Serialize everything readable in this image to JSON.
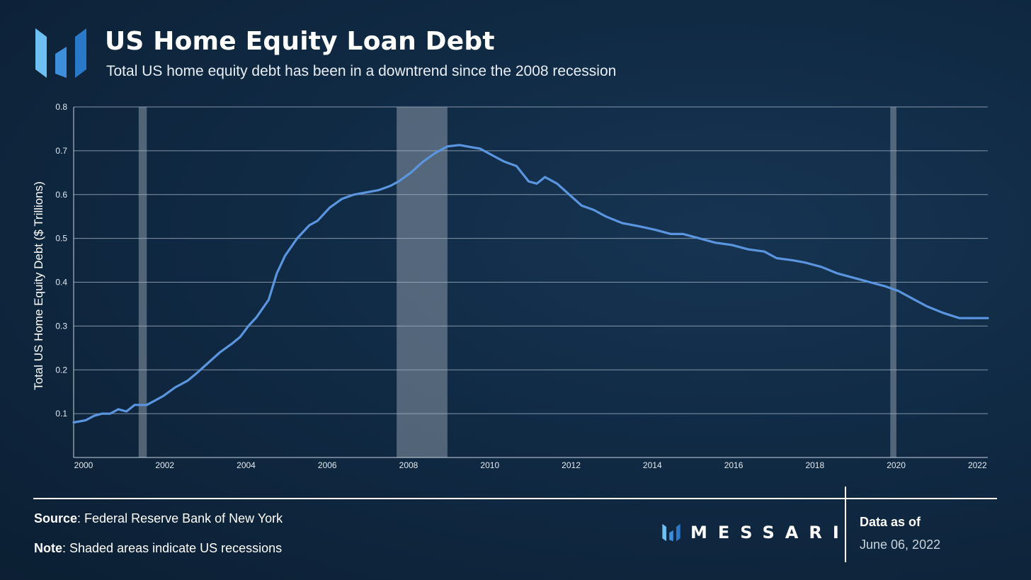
{
  "header": {
    "title": "US Home Equity Loan Debt",
    "subtitle": "Total US home equity debt has been in a downtrend since the 2008 recession"
  },
  "footer": {
    "source_label": "Source",
    "source_text": ": Federal Reserve Bank of New York",
    "note_label": "Note",
    "note_text": ": Shaded areas indicate US recessions",
    "brand_name": "MESSARI",
    "data_as_of_label": "Data as of",
    "data_as_of_date": "June 06, 2022"
  },
  "icons": {
    "logo": "messari-logo-icon"
  },
  "colors": {
    "line": "#5b95e0",
    "recession_shade": "#8a98a6",
    "grid": "#9fb0c2",
    "logo_light": "#6ec0f2",
    "logo_dark": "#2a79c9"
  },
  "chart_data": {
    "type": "line",
    "title": "US Home Equity Loan Debt",
    "subtitle": "Total US home equity debt has been in a downtrend since the 2008 recession",
    "xlabel": "",
    "ylabel": "Total US Home Equity Debt ($ Trillions)",
    "xlim": [
      2000,
      2022.5
    ],
    "ylim": [
      0,
      0.8
    ],
    "x_ticks": [
      2000,
      2002,
      2004,
      2006,
      2008,
      2010,
      2012,
      2014,
      2016,
      2018,
      2020,
      2022
    ],
    "y_ticks": [
      0.1,
      0.2,
      0.3,
      0.4,
      0.5,
      0.6,
      0.7,
      0.8
    ],
    "grid": "horizontal",
    "recessions": [
      [
        2001.6,
        2001.8
      ],
      [
        2007.95,
        2009.2
      ],
      [
        2020.1,
        2020.25
      ]
    ],
    "series": [
      {
        "x": [
          2000.0,
          2000.3,
          2000.5,
          2000.7,
          2000.9,
          2001.1,
          2001.3,
          2001.5,
          2001.8,
          2002.0,
          2002.2,
          2002.5,
          2002.8,
          2003.0,
          2003.3,
          2003.6,
          2003.9,
          2004.1,
          2004.3,
          2004.5,
          2004.8,
          2005.0,
          2005.2,
          2005.5,
          2005.8,
          2006.0,
          2006.3,
          2006.6,
          2006.9,
          2007.2,
          2007.5,
          2007.8,
          2008.0,
          2008.3,
          2008.6,
          2008.9,
          2009.2,
          2009.5,
          2009.8,
          2010.0,
          2010.3,
          2010.6,
          2010.9,
          2011.2,
          2011.4,
          2011.6,
          2011.9,
          2012.2,
          2012.5,
          2012.8,
          2013.1,
          2013.5,
          2013.9,
          2014.3,
          2014.7,
          2015.0,
          2015.4,
          2015.8,
          2016.2,
          2016.6,
          2017.0,
          2017.3,
          2017.7,
          2018.0,
          2018.4,
          2018.8,
          2019.2,
          2019.6,
          2020.0,
          2020.3,
          2020.7,
          2021.0,
          2021.4,
          2021.8,
          2022.1,
          2022.5
        ],
        "y": [
          0.08,
          0.085,
          0.095,
          0.1,
          0.1,
          0.11,
          0.105,
          0.12,
          0.12,
          0.13,
          0.14,
          0.16,
          0.175,
          0.19,
          0.215,
          0.24,
          0.26,
          0.275,
          0.3,
          0.32,
          0.36,
          0.42,
          0.46,
          0.5,
          0.53,
          0.54,
          0.57,
          0.59,
          0.6,
          0.605,
          0.61,
          0.62,
          0.63,
          0.65,
          0.675,
          0.695,
          0.71,
          0.713,
          0.708,
          0.705,
          0.69,
          0.675,
          0.665,
          0.63,
          0.625,
          0.64,
          0.625,
          0.6,
          0.575,
          0.565,
          0.55,
          0.535,
          0.528,
          0.52,
          0.51,
          0.51,
          0.5,
          0.49,
          0.485,
          0.475,
          0.47,
          0.455,
          0.45,
          0.445,
          0.435,
          0.42,
          0.41,
          0.4,
          0.39,
          0.38,
          0.36,
          0.345,
          0.33,
          0.318,
          0.318,
          0.318
        ]
      }
    ]
  }
}
